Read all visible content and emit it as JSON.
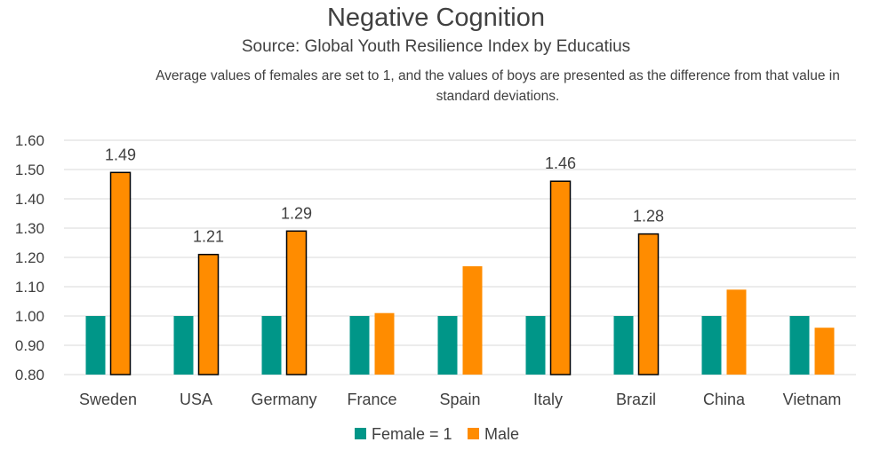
{
  "chart_data": {
    "type": "bar",
    "title": "Negative Cognition",
    "subtitle": "Source: Global Youth Resilience Index by Educatius",
    "note": "Average values of females are set to 1, and the values of boys are presented as the difference from that value in standard deviations.",
    "categories": [
      "Sweden",
      "USA",
      "Germany",
      "France",
      "Spain",
      "Italy",
      "Brazil",
      "China",
      "Vietnam"
    ],
    "series": [
      {
        "name": "Female = 1",
        "color": "#009688",
        "values": [
          1.0,
          1.0,
          1.0,
          1.0,
          1.0,
          1.0,
          1.0,
          1.0,
          1.0
        ]
      },
      {
        "name": "Male",
        "color": "#FF8C00",
        "values": [
          1.49,
          1.21,
          1.29,
          1.01,
          1.17,
          1.46,
          1.28,
          1.09,
          0.96
        ],
        "highlighted": [
          true,
          true,
          true,
          false,
          false,
          true,
          true,
          false,
          false
        ],
        "data_labels": [
          "1.49",
          "1.21",
          "1.29",
          "",
          "",
          "1.46",
          "1.28",
          "",
          ""
        ]
      }
    ],
    "ylim": [
      0.8,
      1.6
    ],
    "yticks": [
      "0.80",
      "0.90",
      "1.00",
      "1.10",
      "1.20",
      "1.30",
      "1.40",
      "1.50",
      "1.60"
    ],
    "grid": true,
    "legend_position": "bottom"
  }
}
